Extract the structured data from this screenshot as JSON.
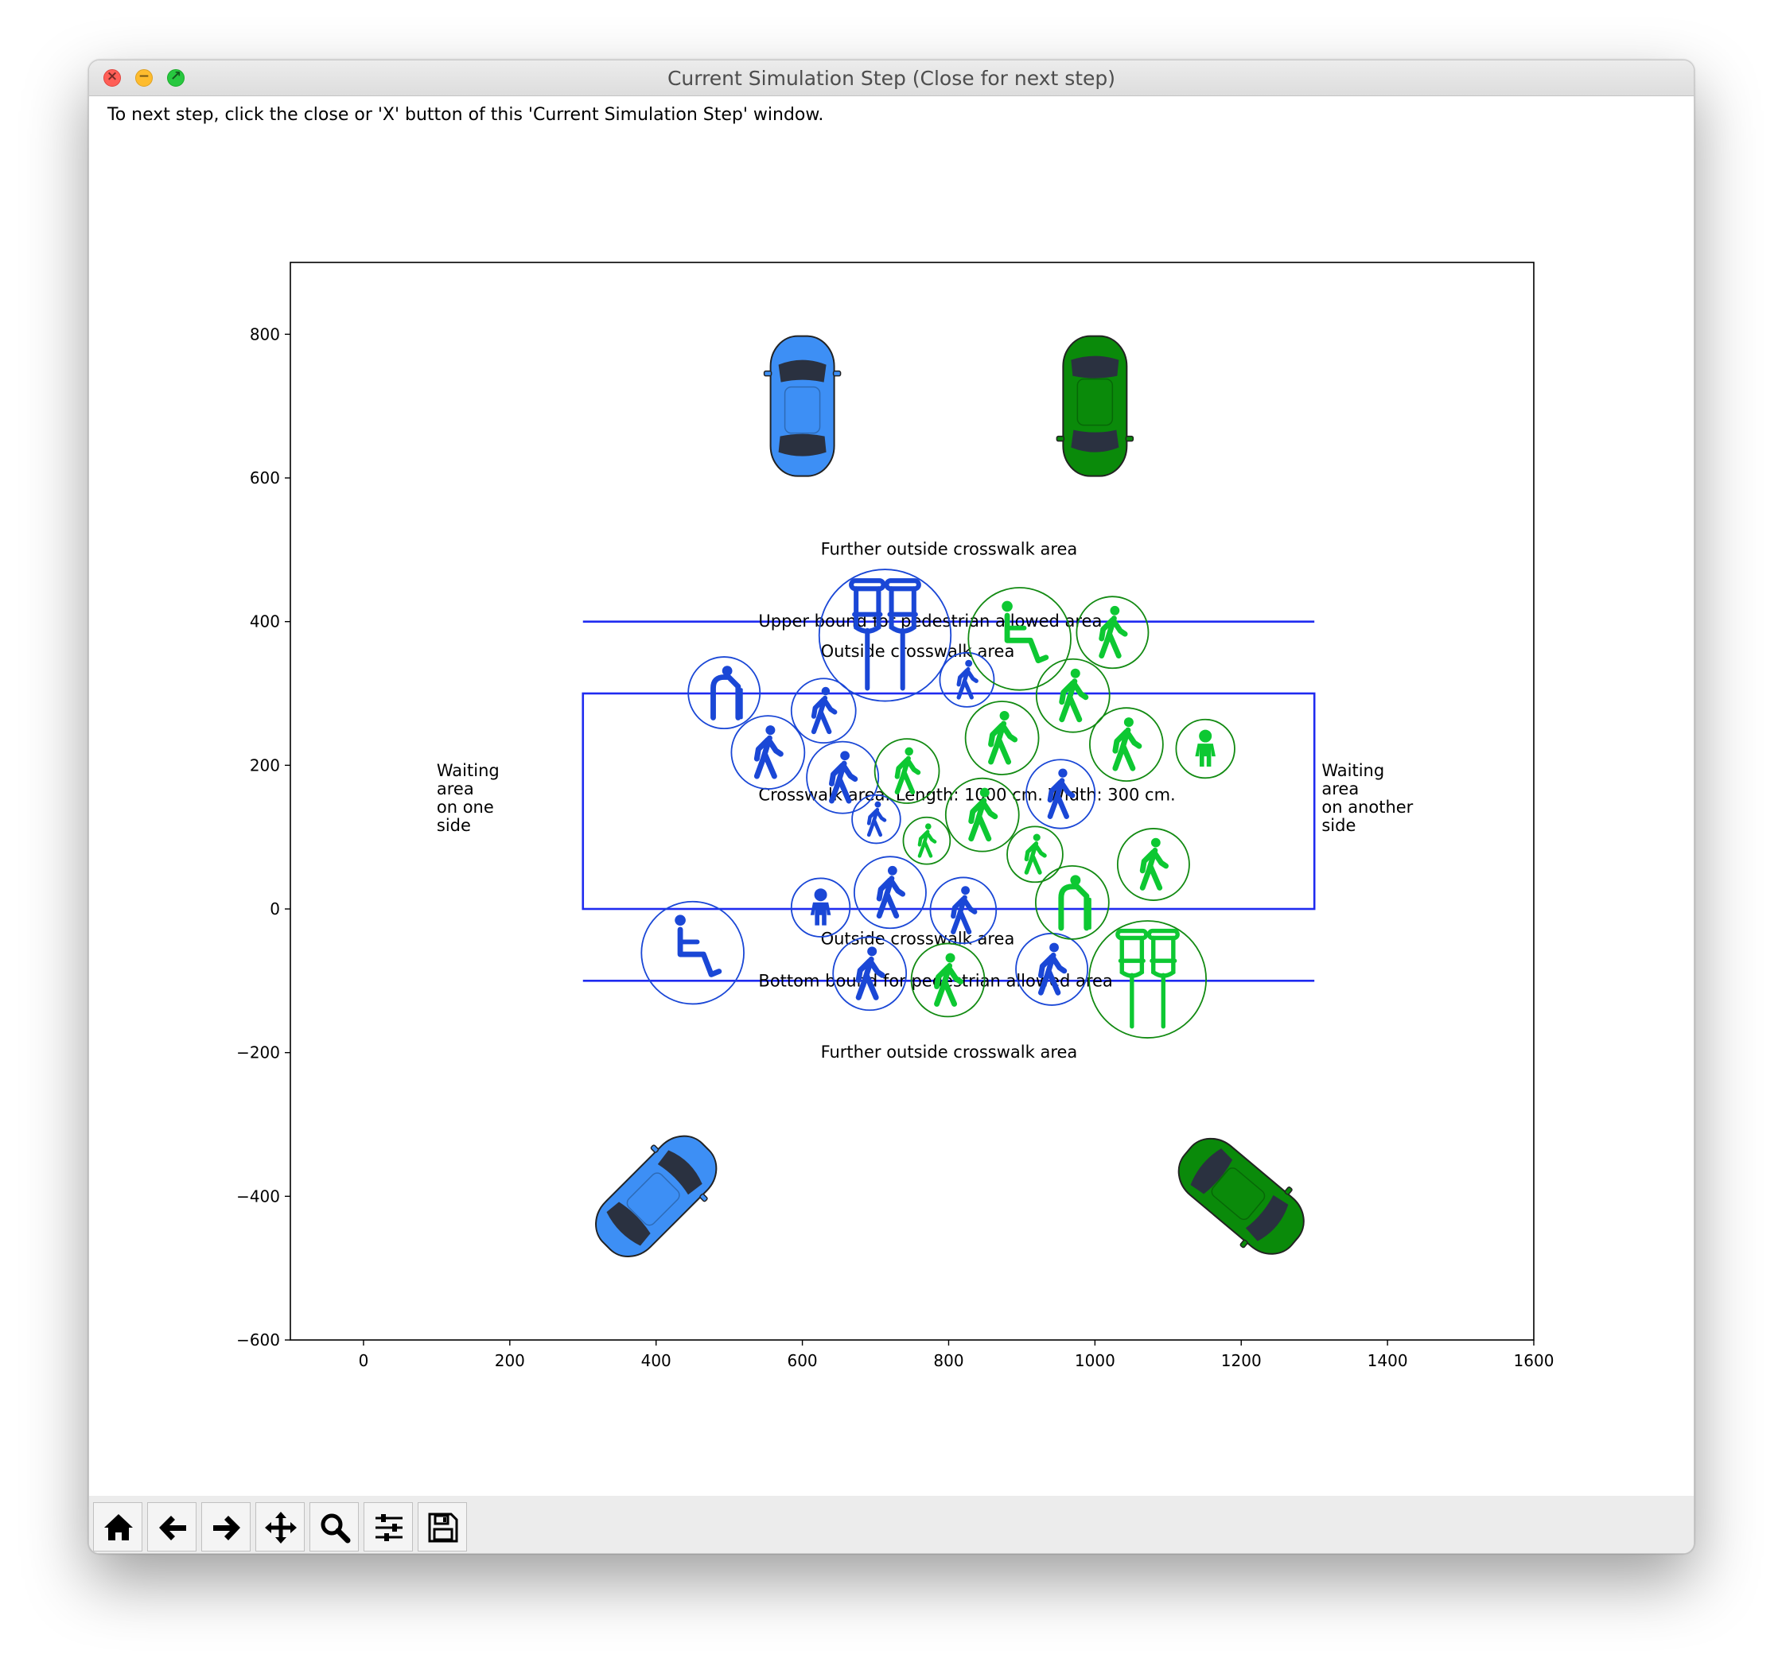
{
  "window": {
    "title": "Current Simulation Step (Close for next step)",
    "instruction": "To next step, click the close or 'X' button of this 'Current Simulation Step' window."
  },
  "colors": {
    "blue_group": "#1a47d6",
    "green_group": "#0dc832",
    "car_blue": "#3d8ff5",
    "car_green": "#0a8a0a",
    "line_blue": "#1f2bf0",
    "green_circle": "#128a12"
  },
  "chart_data": {
    "type": "scatter",
    "xlim": [
      -100,
      1600
    ],
    "ylim": [
      -600,
      900
    ],
    "x_ticks": [
      "0",
      "200",
      "400",
      "600",
      "800",
      "1000",
      "1200",
      "1400",
      "1600"
    ],
    "y_ticks": [
      "800",
      "600",
      "400",
      "200",
      "0",
      "−200",
      "−400",
      "−600"
    ],
    "grid": false,
    "regions": {
      "upper_bound_y": 400,
      "bottom_bound_y": -100,
      "crosswalk_x": [
        300,
        1300
      ],
      "crosswalk_y": [
        0,
        300
      ]
    },
    "annotations": {
      "further_outside_top": "Further outside crosswalk area",
      "upper_bound": "Upper bound for pedestrian allowed area",
      "outside_top": "Outside crosswalk area",
      "crosswalk": "Crosswalk area. Length: 1000 cm. Width: 300 cm.",
      "outside_bottom": "Outside crosswalk area",
      "bottom_bound": "Bottom bound for pedestrian allowed area",
      "further_outside_bottom": "Further outside crosswalk area",
      "waiting_left": [
        "Waiting",
        "area",
        "on one",
        "side"
      ],
      "waiting_right": [
        "Waiting",
        "area",
        "on another",
        "side"
      ]
    },
    "cars": [
      {
        "x": 600,
        "y": 700,
        "color": "blue",
        "angle": 0
      },
      {
        "x": 1000,
        "y": 700,
        "color": "green",
        "angle": 180
      },
      {
        "x": 400,
        "y": -400,
        "color": "blue",
        "angle": 45
      },
      {
        "x": 1200,
        "y": -400,
        "color": "green",
        "angle": 130
      }
    ],
    "series": [
      {
        "group": "blue",
        "pedestrians": [
          {
            "x": 713,
            "y": 381,
            "r": 90,
            "type": "crutches"
          },
          {
            "x": 825,
            "y": 319,
            "r": 37,
            "type": "walker"
          },
          {
            "x": 493,
            "y": 301,
            "r": 49,
            "type": "elderly"
          },
          {
            "x": 629,
            "y": 276,
            "r": 44,
            "type": "walker"
          },
          {
            "x": 553,
            "y": 218,
            "r": 50,
            "type": "walker"
          },
          {
            "x": 655,
            "y": 183,
            "r": 49,
            "type": "walker"
          },
          {
            "x": 953,
            "y": 160,
            "r": 47,
            "type": "walker"
          },
          {
            "x": 701,
            "y": 125,
            "r": 33,
            "type": "walker"
          },
          {
            "x": 720,
            "y": 23,
            "r": 49,
            "type": "walker"
          },
          {
            "x": 625,
            "y": 2,
            "r": 40,
            "type": "child"
          },
          {
            "x": 820,
            "y": -2,
            "r": 45,
            "type": "walker"
          },
          {
            "x": 450,
            "y": -61,
            "r": 70,
            "type": "wheelchair"
          },
          {
            "x": 692,
            "y": -90,
            "r": 50,
            "type": "walker"
          },
          {
            "x": 941,
            "y": -84,
            "r": 49,
            "type": "walker"
          }
        ]
      },
      {
        "group": "green",
        "pedestrians": [
          {
            "x": 897,
            "y": 376,
            "r": 70,
            "type": "wheelchair"
          },
          {
            "x": 1024,
            "y": 385,
            "r": 49,
            "type": "walker"
          },
          {
            "x": 970,
            "y": 297,
            "r": 50,
            "type": "walker"
          },
          {
            "x": 873,
            "y": 238,
            "r": 50,
            "type": "walker"
          },
          {
            "x": 1043,
            "y": 229,
            "r": 50,
            "type": "walker"
          },
          {
            "x": 1151,
            "y": 223,
            "r": 40,
            "type": "child"
          },
          {
            "x": 743,
            "y": 192,
            "r": 44,
            "type": "walker"
          },
          {
            "x": 846,
            "y": 131,
            "r": 50,
            "type": "walker"
          },
          {
            "x": 770,
            "y": 95,
            "r": 32,
            "type": "walker"
          },
          {
            "x": 918,
            "y": 76,
            "r": 38,
            "type": "walker"
          },
          {
            "x": 1080,
            "y": 62,
            "r": 49,
            "type": "walker"
          },
          {
            "x": 969,
            "y": 9,
            "r": 50,
            "type": "elderly"
          },
          {
            "x": 799,
            "y": -99,
            "r": 50,
            "type": "walker"
          },
          {
            "x": 1072,
            "y": -98,
            "r": 80,
            "type": "crutches"
          }
        ]
      }
    ]
  },
  "toolbar": {
    "buttons": [
      {
        "name": "home-button",
        "icon": "home-icon"
      },
      {
        "name": "back-button",
        "icon": "arrow-left-icon"
      },
      {
        "name": "forward-button",
        "icon": "arrow-right-icon"
      },
      {
        "name": "pan-button",
        "icon": "move-icon"
      },
      {
        "name": "zoom-button",
        "icon": "magnifier-icon"
      },
      {
        "name": "configure-subplots-button",
        "icon": "sliders-icon"
      },
      {
        "name": "save-button",
        "icon": "floppy-disk-icon"
      }
    ]
  }
}
